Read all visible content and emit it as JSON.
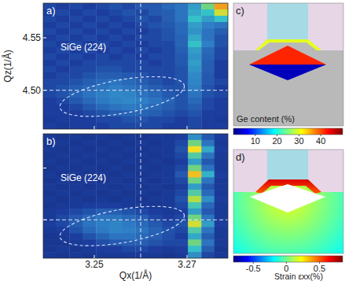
{
  "chart_data": [
    {
      "type": "heatmap",
      "panel_label": "a)",
      "annotation": "SiGe (224)",
      "ylabel": "Qz(1/Å)",
      "xlim": [
        3.239,
        3.2788
      ],
      "ylim": [
        4.463,
        4.583
      ],
      "xticks": [
        3.25,
        3.27
      ],
      "yticks": [
        {
          "value": 4.5,
          "label": "4.50"
        },
        4.55
      ],
      "tick_labels": "y",
      "zlim": [
        0,
        1
      ],
      "reference_lines": {
        "x": 3.26,
        "y": 4.5
      },
      "ellipse": {
        "cx": 3.256,
        "cy": 4.494,
        "rx": 0.0136,
        "ry": 0.016
      },
      "x": [
        3.2404,
        3.2432,
        3.2461,
        3.2489,
        3.2518,
        3.2546,
        3.2574,
        3.2603,
        3.2631,
        3.266,
        3.2688,
        3.2716,
        3.2745,
        3.2773
      ],
      "y": [
        4.58,
        4.574,
        4.568,
        4.562,
        4.556,
        4.55,
        4.544,
        4.538,
        4.532,
        4.526,
        4.52,
        4.514,
        4.508,
        4.502,
        4.496,
        4.49,
        4.484,
        4.478,
        4.472,
        4.466
      ],
      "z": [
        [
          0.22,
          0.2,
          0.22,
          0.2,
          0.22,
          0.24,
          0.22,
          0.25,
          0.25,
          0.28,
          0.3,
          0.38,
          0.55,
          0.85
        ],
        [
          0.2,
          0.22,
          0.2,
          0.22,
          0.2,
          0.22,
          0.24,
          0.22,
          0.25,
          0.26,
          0.3,
          0.4,
          0.45,
          0.7
        ],
        [
          0.22,
          0.2,
          0.22,
          0.2,
          0.22,
          0.2,
          0.22,
          0.24,
          0.22,
          0.26,
          0.3,
          0.45,
          0.38,
          0.45
        ],
        [
          0.2,
          0.22,
          0.2,
          0.22,
          0.2,
          0.22,
          0.2,
          0.22,
          0.24,
          0.25,
          0.28,
          0.38,
          0.32,
          0.3
        ],
        [
          0.22,
          0.2,
          0.22,
          0.2,
          0.22,
          0.2,
          0.22,
          0.2,
          0.22,
          0.24,
          0.28,
          0.36,
          0.3,
          0.26
        ],
        [
          0.2,
          0.22,
          0.2,
          0.22,
          0.2,
          0.22,
          0.2,
          0.22,
          0.22,
          0.24,
          0.27,
          0.4,
          0.3,
          0.24
        ],
        [
          0.22,
          0.2,
          0.22,
          0.2,
          0.22,
          0.2,
          0.22,
          0.2,
          0.22,
          0.22,
          0.27,
          0.45,
          0.32,
          0.24
        ],
        [
          0.2,
          0.22,
          0.2,
          0.22,
          0.2,
          0.22,
          0.2,
          0.22,
          0.2,
          0.22,
          0.26,
          0.38,
          0.28,
          0.22
        ],
        [
          0.22,
          0.2,
          0.22,
          0.2,
          0.22,
          0.2,
          0.22,
          0.2,
          0.22,
          0.22,
          0.25,
          0.36,
          0.27,
          0.22
        ],
        [
          0.2,
          0.22,
          0.2,
          0.22,
          0.22,
          0.22,
          0.22,
          0.22,
          0.2,
          0.22,
          0.25,
          0.38,
          0.26,
          0.2
        ],
        [
          0.22,
          0.2,
          0.22,
          0.22,
          0.24,
          0.24,
          0.22,
          0.22,
          0.22,
          0.22,
          0.24,
          0.36,
          0.26,
          0.2
        ],
        [
          0.2,
          0.22,
          0.22,
          0.24,
          0.26,
          0.26,
          0.25,
          0.24,
          0.22,
          0.22,
          0.24,
          0.34,
          0.25,
          0.2
        ],
        [
          0.22,
          0.22,
          0.24,
          0.26,
          0.28,
          0.3,
          0.28,
          0.26,
          0.24,
          0.22,
          0.24,
          0.33,
          0.25,
          0.22
        ],
        [
          0.22,
          0.24,
          0.26,
          0.28,
          0.3,
          0.32,
          0.3,
          0.28,
          0.26,
          0.24,
          0.24,
          0.32,
          0.24,
          0.2
        ],
        [
          0.22,
          0.24,
          0.27,
          0.3,
          0.32,
          0.34,
          0.33,
          0.3,
          0.28,
          0.25,
          0.24,
          0.3,
          0.24,
          0.22
        ],
        [
          0.2,
          0.22,
          0.25,
          0.28,
          0.31,
          0.33,
          0.34,
          0.32,
          0.3,
          0.27,
          0.24,
          0.28,
          0.22,
          0.2
        ],
        [
          0.2,
          0.2,
          0.22,
          0.25,
          0.28,
          0.3,
          0.31,
          0.3,
          0.28,
          0.26,
          0.24,
          0.26,
          0.22,
          0.2
        ],
        [
          0.2,
          0.2,
          0.2,
          0.22,
          0.24,
          0.26,
          0.27,
          0.27,
          0.26,
          0.24,
          0.22,
          0.24,
          0.2,
          0.2
        ],
        [
          0.18,
          0.2,
          0.2,
          0.2,
          0.22,
          0.22,
          0.24,
          0.24,
          0.22,
          0.22,
          0.2,
          0.22,
          0.2,
          0.18
        ],
        [
          0.2,
          0.18,
          0.2,
          0.2,
          0.2,
          0.22,
          0.22,
          0.22,
          0.22,
          0.2,
          0.2,
          0.22,
          0.2,
          0.2
        ]
      ]
    },
    {
      "type": "heatmap",
      "panel_label": "b)",
      "annotation": "SiGe (224)",
      "xlabel": "Qx(1/Å)",
      "xlim": [
        3.239,
        3.2788
      ],
      "ylim": [
        4.463,
        4.583
      ],
      "xticks": [
        3.25,
        3.27
      ],
      "yticks": [
        {
          "value": 4.5,
          "label": "4.50"
        },
        4.55
      ],
      "tick_labels": "x",
      "zlim": [
        0,
        1
      ],
      "reference_lines": {
        "x": 3.26,
        "y": 4.5
      },
      "ellipse": {
        "cx": 3.256,
        "cy": 4.494,
        "rx": 0.0136,
        "ry": 0.016
      },
      "x": [
        3.2404,
        3.2432,
        3.2461,
        3.2489,
        3.2518,
        3.2546,
        3.2574,
        3.2603,
        3.2631,
        3.266,
        3.2688,
        3.2716,
        3.2745,
        3.2773
      ],
      "y": [
        4.58,
        4.574,
        4.568,
        4.562,
        4.556,
        4.55,
        4.544,
        4.538,
        4.532,
        4.526,
        4.52,
        4.514,
        4.508,
        4.502,
        4.496,
        4.49,
        4.484,
        4.478,
        4.472,
        4.466
      ],
      "z": [
        [
          0.18,
          0.16,
          0.18,
          0.16,
          0.18,
          0.16,
          0.18,
          0.16,
          0.18,
          0.18,
          0.2,
          0.35,
          0.25,
          0.2
        ],
        [
          0.16,
          0.18,
          0.16,
          0.18,
          0.16,
          0.18,
          0.16,
          0.18,
          0.16,
          0.18,
          0.22,
          0.55,
          0.3,
          0.18
        ],
        [
          0.18,
          0.16,
          0.18,
          0.16,
          0.18,
          0.16,
          0.18,
          0.16,
          0.18,
          0.18,
          0.24,
          0.75,
          0.4,
          0.2
        ],
        [
          0.16,
          0.18,
          0.16,
          0.18,
          0.16,
          0.18,
          0.16,
          0.18,
          0.16,
          0.18,
          0.22,
          0.5,
          0.3,
          0.18
        ],
        [
          0.18,
          0.16,
          0.18,
          0.16,
          0.18,
          0.16,
          0.18,
          0.16,
          0.18,
          0.16,
          0.2,
          0.38,
          0.25,
          0.18
        ],
        [
          0.16,
          0.18,
          0.16,
          0.18,
          0.16,
          0.18,
          0.16,
          0.18,
          0.16,
          0.18,
          0.22,
          0.55,
          0.3,
          0.18
        ],
        [
          0.18,
          0.16,
          0.18,
          0.16,
          0.18,
          0.16,
          0.18,
          0.16,
          0.18,
          0.18,
          0.25,
          0.8,
          0.42,
          0.2
        ],
        [
          0.16,
          0.18,
          0.16,
          0.18,
          0.16,
          0.18,
          0.16,
          0.18,
          0.16,
          0.18,
          0.22,
          0.55,
          0.3,
          0.18
        ],
        [
          0.18,
          0.16,
          0.18,
          0.16,
          0.18,
          0.16,
          0.18,
          0.16,
          0.18,
          0.16,
          0.2,
          0.38,
          0.25,
          0.18
        ],
        [
          0.16,
          0.18,
          0.16,
          0.18,
          0.16,
          0.18,
          0.16,
          0.18,
          0.16,
          0.18,
          0.22,
          0.5,
          0.28,
          0.18
        ],
        [
          0.18,
          0.16,
          0.18,
          0.16,
          0.18,
          0.16,
          0.18,
          0.16,
          0.18,
          0.18,
          0.24,
          0.65,
          0.35,
          0.2
        ],
        [
          0.16,
          0.18,
          0.18,
          0.2,
          0.2,
          0.2,
          0.18,
          0.18,
          0.16,
          0.18,
          0.22,
          0.48,
          0.28,
          0.18
        ],
        [
          0.18,
          0.2,
          0.22,
          0.24,
          0.26,
          0.26,
          0.24,
          0.22,
          0.2,
          0.18,
          0.2,
          0.38,
          0.25,
          0.18
        ],
        [
          0.18,
          0.22,
          0.25,
          0.28,
          0.3,
          0.3,
          0.28,
          0.26,
          0.22,
          0.2,
          0.22,
          0.55,
          0.3,
          0.18
        ],
        [
          0.2,
          0.22,
          0.26,
          0.3,
          0.32,
          0.33,
          0.31,
          0.28,
          0.25,
          0.22,
          0.24,
          0.7,
          0.38,
          0.2
        ],
        [
          0.18,
          0.2,
          0.24,
          0.28,
          0.31,
          0.33,
          0.32,
          0.3,
          0.27,
          0.24,
          0.22,
          0.5,
          0.3,
          0.18
        ],
        [
          0.16,
          0.18,
          0.2,
          0.24,
          0.27,
          0.3,
          0.3,
          0.28,
          0.26,
          0.23,
          0.2,
          0.4,
          0.26,
          0.18
        ],
        [
          0.16,
          0.16,
          0.18,
          0.2,
          0.23,
          0.25,
          0.26,
          0.26,
          0.24,
          0.22,
          0.22,
          0.55,
          0.3,
          0.18
        ],
        [
          0.16,
          0.18,
          0.16,
          0.18,
          0.2,
          0.2,
          0.22,
          0.22,
          0.2,
          0.18,
          0.2,
          0.45,
          0.26,
          0.16
        ],
        [
          0.18,
          0.16,
          0.18,
          0.16,
          0.18,
          0.18,
          0.18,
          0.18,
          0.18,
          0.16,
          0.18,
          0.35,
          0.22,
          0.18
        ]
      ]
    },
    {
      "type": "map",
      "panel_label": "c)",
      "colorbar": {
        "label": "Ge content (%)",
        "lim": [
          0,
          50
        ],
        "ticks": [
          10,
          20,
          30,
          40
        ]
      },
      "field": {
        "layer": 30,
        "dot_top": 42,
        "dot_bottom": 3
      }
    },
    {
      "type": "map",
      "panel_label": "d)",
      "colorbar": {
        "label": "Strain εxx(%)",
        "lim": [
          -0.8,
          0.85
        ],
        "ticks": [
          -0.5,
          0,
          0.5
        ]
      },
      "field": {
        "cap_top": 0.7,
        "cap": 0.5,
        "near_void": 0.2,
        "far": -0.15
      }
    }
  ]
}
